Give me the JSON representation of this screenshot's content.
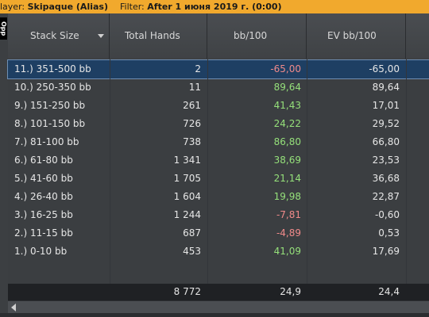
{
  "topbar": {
    "player_label": "layer:",
    "player_value": "Skipaque (Alias)",
    "filter_label": "Filter:",
    "filter_value": "After 1 июня 2019 г. (0:00)"
  },
  "side_tab": {
    "label": "Opp"
  },
  "columns": [
    "Stack Size",
    "Total Hands",
    "bb/100",
    "EV bb/100"
  ],
  "rows": [
    {
      "name": "11.) 351-500 bb",
      "hands": "2",
      "bb": "-65,00",
      "ev": "-65,00",
      "selected": true
    },
    {
      "name": "10.) 250-350 bb",
      "hands": "11",
      "bb": "89,64",
      "ev": "89,64"
    },
    {
      "name": "9.) 151-250 bb",
      "hands": "261",
      "bb": "41,43",
      "ev": "17,01"
    },
    {
      "name": "8.) 101-150 bb",
      "hands": "726",
      "bb": "24,22",
      "ev": "29,52"
    },
    {
      "name": "7.) 81-100 bb",
      "hands": "738",
      "bb": "86,80",
      "ev": "66,80"
    },
    {
      "name": "6.) 61-80 bb",
      "hands": "1 341",
      "bb": "38,69",
      "ev": "23,53"
    },
    {
      "name": "5.) 41-60 bb",
      "hands": "1 705",
      "bb": "21,14",
      "ev": "36,68"
    },
    {
      "name": "4.) 26-40 bb",
      "hands": "1 604",
      "bb": "19,98",
      "ev": "22,87"
    },
    {
      "name": "3.) 16-25 bb",
      "hands": "1 244",
      "bb": "-7,81",
      "ev": "-0,60"
    },
    {
      "name": "2.) 11-15 bb",
      "hands": "687",
      "bb": "-4,89",
      "ev": "0,53"
    },
    {
      "name": "1.) 0-10 bb",
      "hands": "453",
      "bb": "41,09",
      "ev": "17,69"
    }
  ],
  "totals": {
    "hands": "8 772",
    "bb": "24,9",
    "ev": "24,4"
  },
  "colors": {
    "positive": "#95e07a",
    "negative": "#f08a8a",
    "selected_row": "#1e3f63",
    "topbar": "#f1a92d"
  }
}
